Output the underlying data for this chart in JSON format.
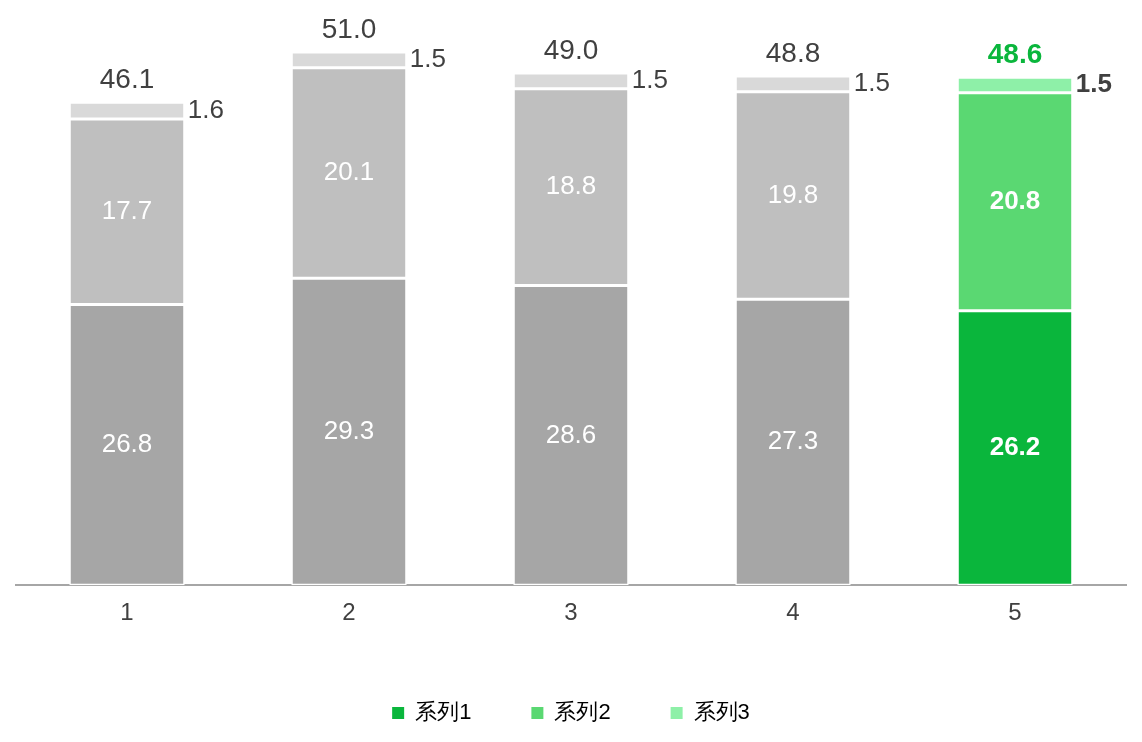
{
  "chart_data": {
    "type": "bar",
    "stacked": true,
    "categories": [
      "1",
      "2",
      "3",
      "4",
      "5"
    ],
    "series": [
      {
        "name": "系列1",
        "color": "#0ab63c",
        "colors": [
          "#a6a6a6",
          "#a6a6a6",
          "#a6a6a6",
          "#a6a6a6",
          "#0ab63c"
        ],
        "values": [
          26.8,
          29.3,
          28.6,
          27.3,
          26.2
        ]
      },
      {
        "name": "系列2",
        "color": "#5ad872",
        "colors": [
          "#bfbfbf",
          "#bfbfbf",
          "#bfbfbf",
          "#bfbfbf",
          "#5ad872"
        ],
        "values": [
          17.7,
          20.1,
          18.8,
          19.8,
          20.8
        ]
      },
      {
        "name": "系列3",
        "color": "#8ef0a8",
        "colors": [
          "#d9d9d9",
          "#d9d9d9",
          "#d9d9d9",
          "#d9d9d9",
          "#8ef0a8"
        ],
        "values": [
          1.6,
          1.5,
          1.5,
          1.5,
          1.5
        ]
      }
    ],
    "totals": [
      "46.1",
      "51.0",
      "49.0",
      "48.8",
      "48.6"
    ],
    "data_labels": true,
    "tick_labels": "x",
    "grid": false,
    "legend": "bottom"
  }
}
